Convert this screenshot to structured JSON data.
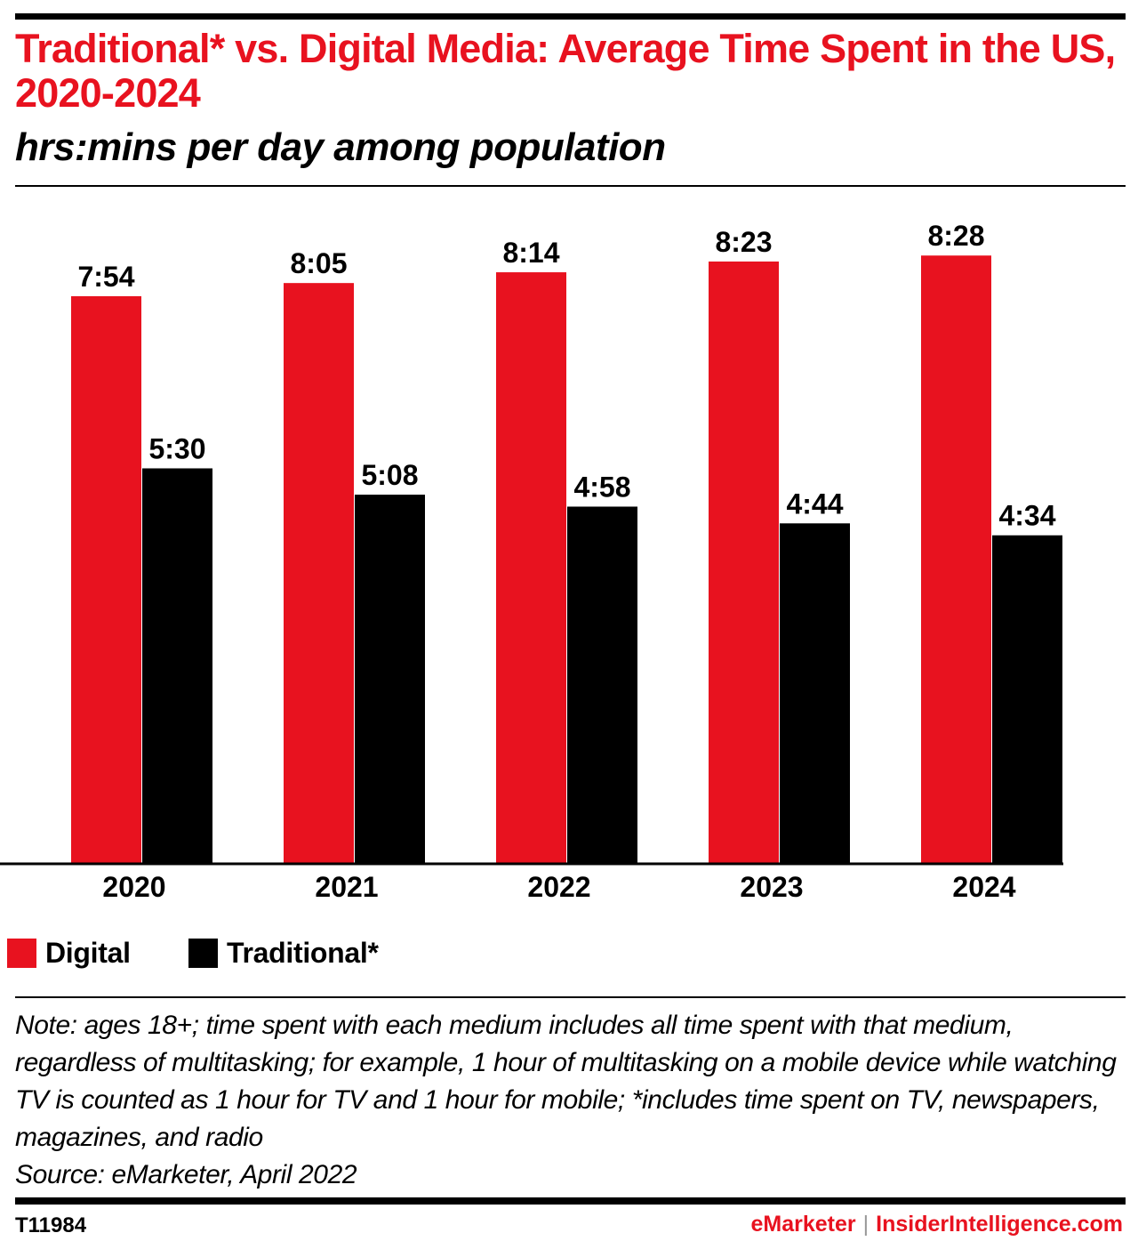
{
  "header": {
    "title": "Traditional* vs. Digital Media: Average Time Spent in the US, 2020-2024",
    "subtitle": "hrs:mins per day among population"
  },
  "colors": {
    "digital": "#e8121f",
    "traditional": "#000000",
    "title": "#e8121f",
    "axis": "#000000"
  },
  "chart_data": {
    "type": "bar",
    "title": "Traditional* vs. Digital Media: Average Time Spent in the US, 2020-2024",
    "subtitle": "hrs:mins per day among population",
    "xlabel": "",
    "ylabel": "",
    "grid": false,
    "legend_position": "bottom",
    "categories": [
      "2020",
      "2021",
      "2022",
      "2023",
      "2024"
    ],
    "unit": "minutes per day",
    "series": [
      {
        "name": "Digital",
        "color": "#e8121f",
        "values": [
          474,
          485,
          494,
          503,
          508
        ],
        "labels": [
          "7:54",
          "8:05",
          "8:14",
          "8:23",
          "8:28"
        ]
      },
      {
        "name": "Traditional*",
        "color": "#000000",
        "values": [
          330,
          308,
          298,
          284,
          274
        ],
        "labels": [
          "5:30",
          "5:08",
          "4:58",
          "4:44",
          "4:34"
        ]
      }
    ],
    "ylim": [
      0,
      540
    ]
  },
  "legend": {
    "items": [
      {
        "label": "Digital",
        "color": "#e8121f"
      },
      {
        "label": "Traditional*",
        "color": "#000000"
      }
    ]
  },
  "footer": {
    "note": "Note: ages 18+; time spent with each medium includes all time spent with that medium, regardless of multitasking; for example, 1 hour of multitasking on a mobile device while watching TV is counted as 1 hour for TV and 1 hour for mobile; *includes time spent on TV, newspapers, magazines, and radio",
    "source": "Source: eMarketer, April 2022",
    "chart_id": "T11984",
    "brand_primary": "eMarketer",
    "brand_separator": "|",
    "brand_secondary": "InsiderIntelligence.com"
  }
}
